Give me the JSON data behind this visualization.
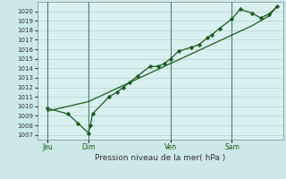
{
  "xlabel": "Pression niveau de la mer( hPa )",
  "bg_color": "#cce8e8",
  "plot_bg_color": "#d8f0f0",
  "grid_color": "#b8d0d0",
  "line_color": "#1a5c1a",
  "marker_color": "#1a5c1a",
  "ylim": [
    1006.5,
    1021.0
  ],
  "yticks": [
    1007,
    1008,
    1009,
    1010,
    1011,
    1012,
    1013,
    1014,
    1015,
    1016,
    1017,
    1018,
    1019,
    1020
  ],
  "day_positions": [
    0.0,
    2.0,
    6.0,
    9.0
  ],
  "day_labels": [
    "Jeu",
    "Dim",
    "Ven",
    "Sam"
  ],
  "xlim": [
    -0.5,
    11.5
  ],
  "series1_x": [
    0.0,
    1.0,
    1.5,
    2.0,
    2.1,
    2.2,
    3.0,
    3.4,
    3.7,
    4.0,
    4.4,
    5.0,
    5.4,
    5.7,
    6.0,
    6.4,
    7.0,
    7.4,
    7.8,
    8.0,
    8.4,
    9.0,
    9.4,
    10.0,
    10.4,
    10.8,
    11.2
  ],
  "series1_y": [
    1009.8,
    1009.2,
    1008.2,
    1007.2,
    1008.0,
    1009.2,
    1011.0,
    1011.5,
    1012.0,
    1012.5,
    1013.2,
    1014.2,
    1014.2,
    1014.5,
    1015.0,
    1015.8,
    1016.2,
    1016.5,
    1017.2,
    1017.5,
    1018.2,
    1019.2,
    1020.2,
    1019.8,
    1019.3,
    1019.7,
    1020.5
  ],
  "series2_x": [
    0.0,
    1.0,
    2.0,
    3.0,
    4.0,
    5.0,
    6.0,
    7.0,
    8.0,
    9.0,
    10.0,
    10.8,
    11.2
  ],
  "series2_y": [
    1009.5,
    1010.0,
    1010.5,
    1011.5,
    1012.5,
    1013.5,
    1014.5,
    1015.5,
    1016.5,
    1017.5,
    1018.5,
    1019.5,
    1020.5
  ]
}
